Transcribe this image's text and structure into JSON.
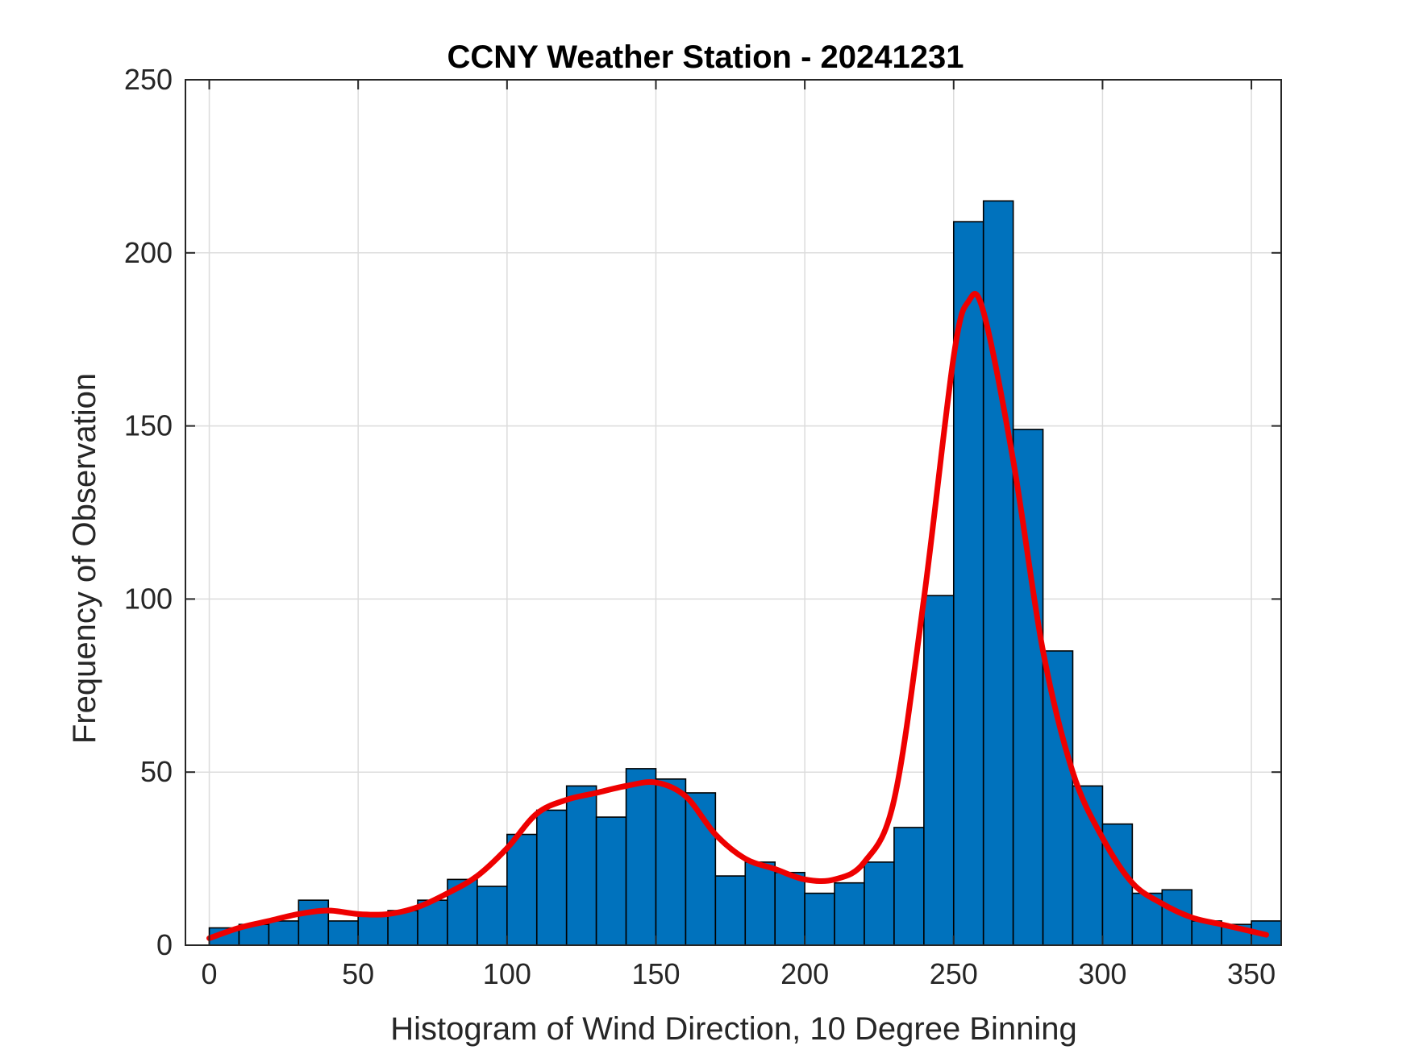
{
  "chart_data": {
    "type": "bar",
    "title": "CCNY Weather Station - 20241231",
    "xlabel": "Histogram of Wind Direction, 10 Degree Binning",
    "ylabel": "Frequency of Observation",
    "xlim": [
      -8,
      360
    ],
    "ylim": [
      0,
      250
    ],
    "grid": true,
    "x_ticks": [
      0,
      50,
      100,
      150,
      200,
      250,
      300,
      350
    ],
    "y_ticks": [
      0,
      50,
      100,
      150,
      200,
      250
    ],
    "bin_edges": [
      0,
      10,
      20,
      30,
      40,
      50,
      60,
      70,
      80,
      90,
      100,
      110,
      120,
      130,
      140,
      150,
      160,
      170,
      180,
      190,
      200,
      210,
      220,
      230,
      240,
      250,
      260,
      270,
      280,
      290,
      300,
      310,
      320,
      330,
      340,
      350,
      360
    ],
    "values": [
      5,
      6,
      7,
      13,
      7,
      9,
      10,
      13,
      19,
      17,
      32,
      39,
      46,
      37,
      51,
      48,
      44,
      20,
      24,
      21,
      15,
      18,
      24,
      34,
      101,
      209,
      215,
      149,
      85,
      46,
      35,
      15,
      16,
      7,
      6,
      7
    ],
    "fit_curve": {
      "x": [
        0,
        10,
        20,
        30,
        40,
        50,
        60,
        70,
        80,
        90,
        100,
        110,
        120,
        130,
        140,
        150,
        160,
        170,
        180,
        190,
        200,
        210,
        220,
        230,
        240,
        250,
        255,
        260,
        270,
        280,
        290,
        300,
        310,
        320,
        330,
        340,
        350,
        355
      ],
      "y": [
        2,
        5,
        7,
        9,
        10,
        9,
        9,
        11,
        15,
        20,
        28,
        38,
        42,
        44,
        46,
        47,
        43,
        32,
        25,
        22,
        19,
        19,
        24,
        42,
        100,
        170,
        186,
        183,
        140,
        85,
        50,
        31,
        18,
        12,
        8,
        6,
        4,
        3
      ]
    },
    "colors": {
      "bar_fill": "#0072BD",
      "bar_edge": "#000000",
      "fit_line": "#EE0000"
    }
  }
}
